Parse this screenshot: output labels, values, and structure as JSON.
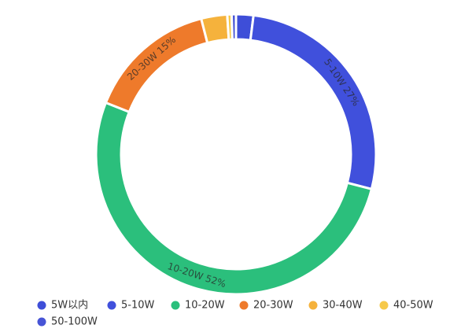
{
  "chart_data": {
    "type": "donut",
    "categories": [
      "5W以内",
      "5-10W",
      "10-20W",
      "20-30W",
      "30-40W",
      "40-50W",
      "50-100W"
    ],
    "values": [
      2,
      27,
      52,
      15,
      3,
      0.5,
      0.5
    ],
    "value_labels": [
      null,
      "5-10W 27%",
      "10-20W 52%",
      "20-30W 15%",
      null,
      null,
      null
    ],
    "colors": [
      "#3e4ed8",
      "#4050dc",
      "#2bbf7c",
      "#ee7a2b",
      "#f5b23c",
      "#f6c94a",
      "#4754d6"
    ]
  }
}
